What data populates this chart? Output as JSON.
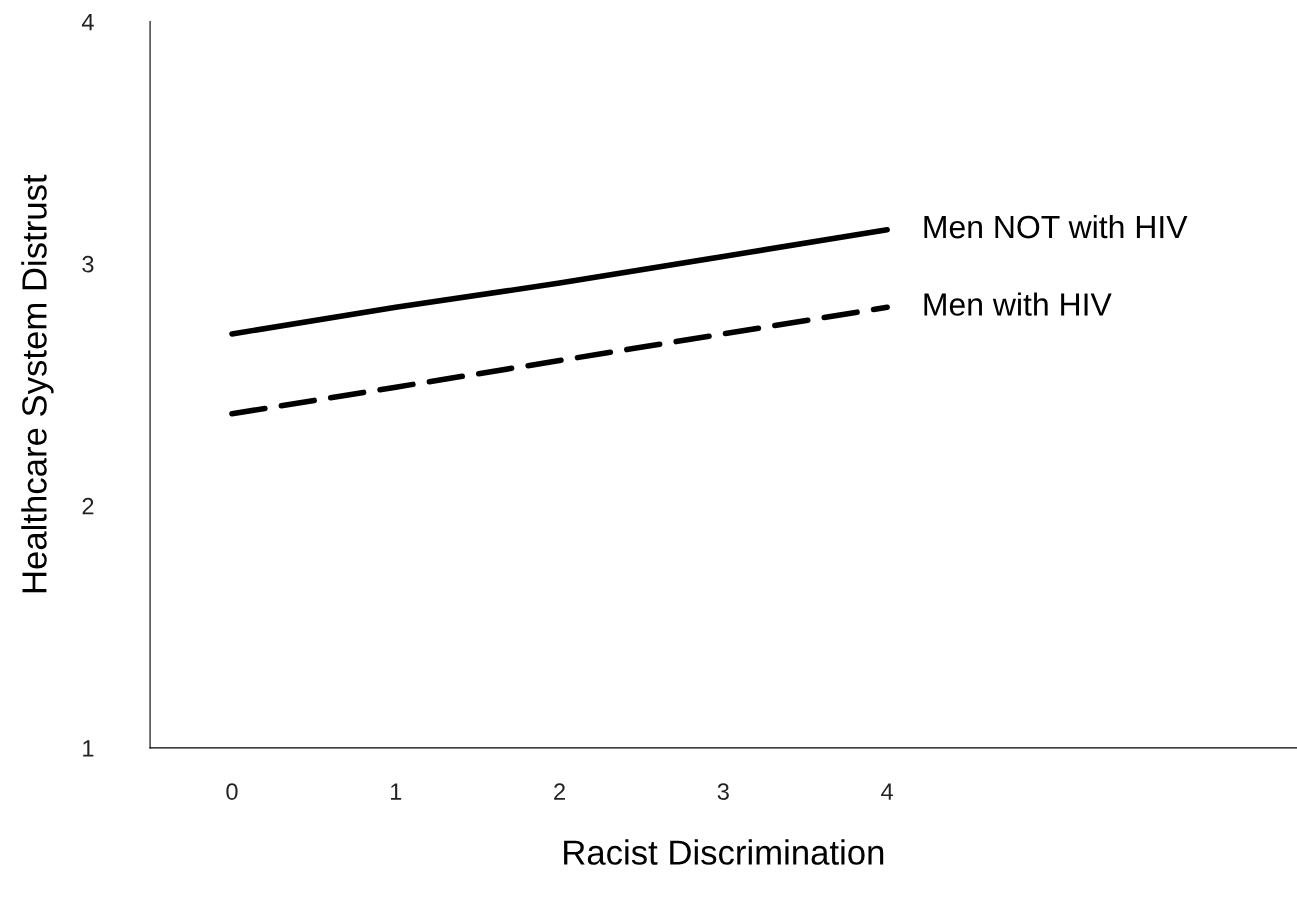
{
  "chart_data": {
    "type": "line",
    "xlabel": "Racist Discrimination",
    "ylabel": "Healthcare System Distrust",
    "x": [
      0,
      1,
      2,
      3,
      4
    ],
    "series": [
      {
        "name": "Men NOT with HIV",
        "color": "#000000",
        "line_style": "solid",
        "values": [
          2.71,
          2.82,
          2.92,
          3.03,
          3.14
        ]
      },
      {
        "name": "Men with HIV",
        "color": "#000000",
        "line_style": "dashed",
        "values": [
          2.38,
          2.49,
          2.6,
          2.71,
          2.82
        ]
      }
    ],
    "xlim": [
      -0.5,
      6.5
    ],
    "xticks": [
      0,
      1,
      2,
      3,
      4
    ],
    "ylim": [
      1,
      4
    ],
    "yticks": [
      1,
      2,
      3,
      4
    ],
    "grid": false,
    "legend": false,
    "marker": "none"
  }
}
